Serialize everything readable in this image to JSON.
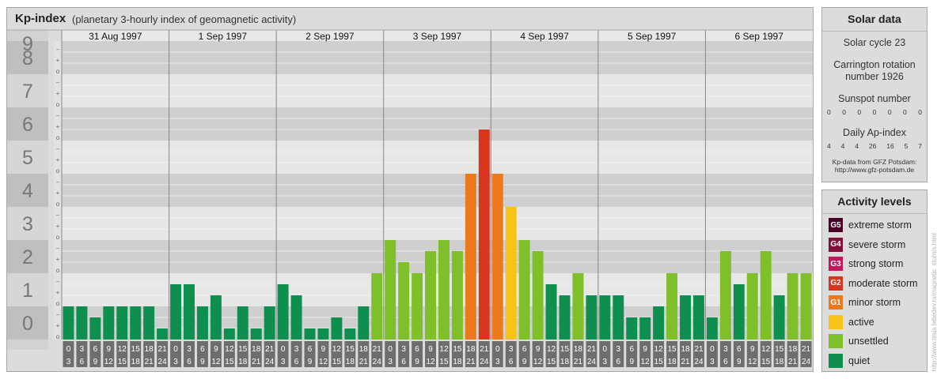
{
  "header": {
    "title": "Kp-index",
    "subtitle": "(planetary 3-hourly index of geomagnetic activity)"
  },
  "chart_data": {
    "type": "bar",
    "title": "Kp-index",
    "subtitle": "(planetary 3-hourly index of geomagnetic activity)",
    "y_ticks": [
      "0",
      "1",
      "2",
      "3",
      "4",
      "5",
      "6",
      "7",
      "8",
      "9"
    ],
    "minor_ticks": [
      "o",
      "+",
      "–"
    ],
    "days": [
      "31 Aug 1997",
      "1 Sep 1997",
      "2 Sep 1997",
      "3 Sep 1997",
      "4 Sep 1997",
      "5 Sep 1997",
      "6 Sep 1997"
    ],
    "hour_labels_top": [
      "0",
      "3",
      "6",
      "9",
      "12",
      "15",
      "18",
      "21"
    ],
    "hour_labels_bottom": [
      "3",
      "6",
      "9",
      "12",
      "15",
      "18",
      "21",
      "24"
    ],
    "values": [
      [
        1.0,
        1.0,
        0.667,
        1.0,
        1.0,
        1.0,
        1.0,
        0.333
      ],
      [
        1.667,
        1.667,
        1.0,
        1.333,
        0.333,
        1.0,
        0.333,
        1.0
      ],
      [
        1.667,
        1.333,
        0.333,
        0.333,
        0.667,
        0.333,
        1.0,
        2.0
      ],
      [
        3.0,
        2.333,
        2.0,
        2.667,
        3.0,
        2.667,
        5.0,
        6.333
      ],
      [
        5.0,
        4.0,
        3.0,
        2.667,
        1.667,
        1.333,
        2.0,
        1.333
      ],
      [
        1.333,
        1.333,
        0.667,
        0.667,
        1.0,
        2.0,
        1.333,
        1.333
      ],
      [
        0.667,
        2.667,
        1.667,
        2.0,
        2.667,
        1.333,
        2.0,
        2.0
      ]
    ],
    "ylim": [
      0,
      9
    ],
    "grid": true
  },
  "level_colors": {
    "quiet": "#0e8f50",
    "unsettled": "#7ebf2a",
    "active": "#f7c21a",
    "g1": "#ec7a1d",
    "g2": "#d8361f",
    "g3": "#c2185b",
    "g4": "#82103c",
    "g5": "#4a0328"
  },
  "solar": {
    "title": "Solar data",
    "cycle": "Solar cycle 23",
    "carrington_line1": "Carrington rotation",
    "carrington_line2": "number 1926",
    "sunspot_label": "Sunspot number",
    "sunspot_values": [
      "0",
      "0",
      "0",
      "0",
      "0",
      "0",
      "0"
    ],
    "ap_label": "Daily Ap-index",
    "ap_values": [
      "4",
      "4",
      "4",
      "26",
      "16",
      "5",
      "7"
    ],
    "credit_line1": "Kp-data from GFZ Potsdam:",
    "credit_line2": "http://www.gfz-potsdam.de"
  },
  "legend": {
    "title": "Activity levels",
    "items": [
      {
        "badge": "G5",
        "label": "extreme storm",
        "color": "#4a0328"
      },
      {
        "badge": "G4",
        "label": "severe storm",
        "color": "#82103c"
      },
      {
        "badge": "G3",
        "label": "strong storm",
        "color": "#c2185b"
      },
      {
        "badge": "G2",
        "label": "moderate storm",
        "color": "#d8361f"
      },
      {
        "badge": "G1",
        "label": "minor storm",
        "color": "#ec7a1d"
      },
      {
        "badge": "",
        "label": "active",
        "color": "#f7c21a"
      },
      {
        "badge": "",
        "label": "unsettled",
        "color": "#7ebf2a"
      },
      {
        "badge": "",
        "label": "quiet",
        "color": "#0e8f50"
      }
    ]
  },
  "watermark": "http://www.tesis.lebedev.ru/magnetic_storms.html"
}
